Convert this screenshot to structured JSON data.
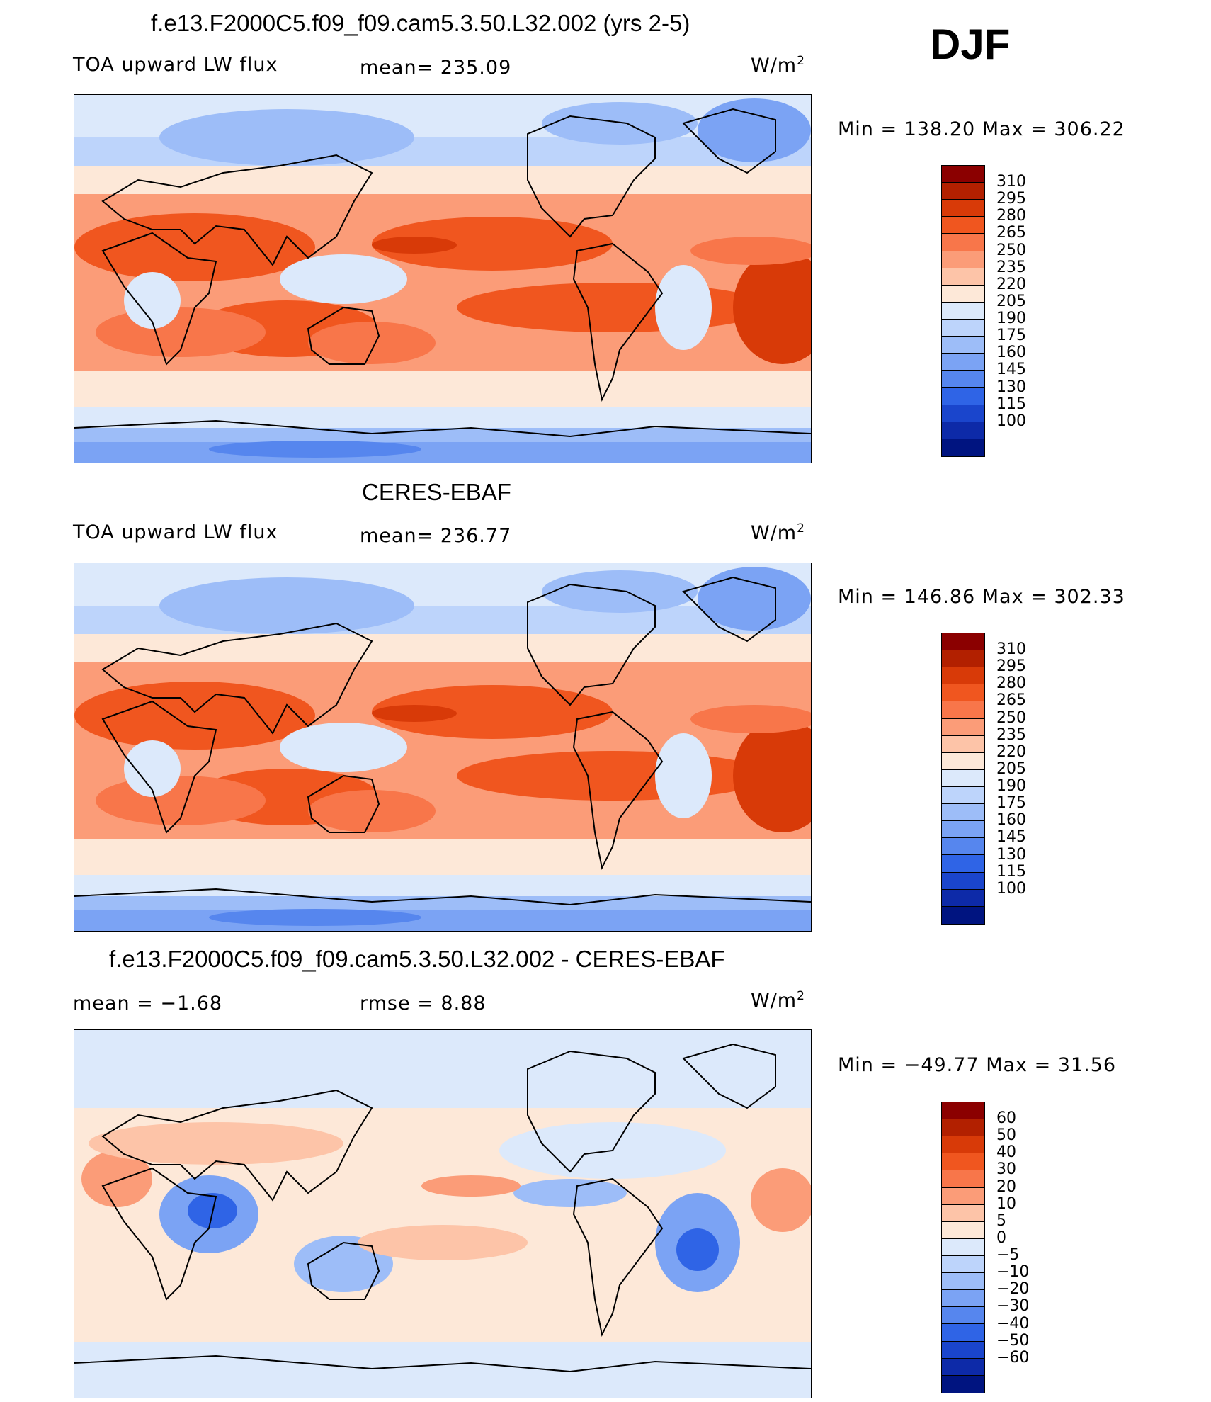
{
  "season": "DJF",
  "panels": [
    {
      "title": "f.e13.F2000C5.f09_f09.cam5.3.50.L32.002 (yrs 2-5)",
      "left_label": "TOA upward LW flux",
      "center_label": "mean= 235.09",
      "units_label": "W/m",
      "units_sup": "2",
      "minmax": "Min  =  138.20  Max  =  306.22",
      "kind": "model"
    },
    {
      "title": "CERES-EBAF",
      "left_label": "TOA upward LW flux",
      "center_label": "mean= 236.77",
      "units_label": "W/m",
      "units_sup": "2",
      "minmax": "Min  =  146.86  Max  =  302.33",
      "kind": "obs"
    },
    {
      "title": "f.e13.F2000C5.f09_f09.cam5.3.50.L32.002 - CERES-EBAF",
      "left_label": "mean  =    −1.68",
      "center_label": "rmse  =     8.88",
      "units_label": "W/m",
      "units_sup": "2",
      "minmax": "Min  =  −49.77  Max  =    31.56",
      "kind": "diff"
    }
  ],
  "colorbars": {
    "flux": {
      "labels": [
        "310",
        "295",
        "280",
        "265",
        "250",
        "235",
        "220",
        "205",
        "190",
        "175",
        "160",
        "145",
        "130",
        "115",
        "100"
      ],
      "colors": [
        "#8b0000",
        "#b22000",
        "#d83a08",
        "#f0561f",
        "#f8764a",
        "#fb9c78",
        "#fdc4a8",
        "#fde8d8",
        "#dce9fb",
        "#bdd4fb",
        "#9dbdf8",
        "#7ba3f4",
        "#5686ee",
        "#2f64e6",
        "#1a45cc",
        "#0d2aa8",
        "#001480"
      ]
    },
    "diff": {
      "labels": [
        "60",
        "50",
        "40",
        "30",
        "20",
        "10",
        "5",
        "0",
        "−5",
        "−10",
        "−20",
        "−30",
        "−40",
        "−50",
        "−60"
      ],
      "colors": [
        "#8b0000",
        "#b22000",
        "#d83a08",
        "#f0561f",
        "#f8764a",
        "#fb9c78",
        "#fdc4a8",
        "#fde8d8",
        "#dce9fb",
        "#bdd4fb",
        "#9dbdf8",
        "#7ba3f4",
        "#5686ee",
        "#2f64e6",
        "#1a45cc",
        "#0d2aa8",
        "#001480"
      ]
    }
  }
}
